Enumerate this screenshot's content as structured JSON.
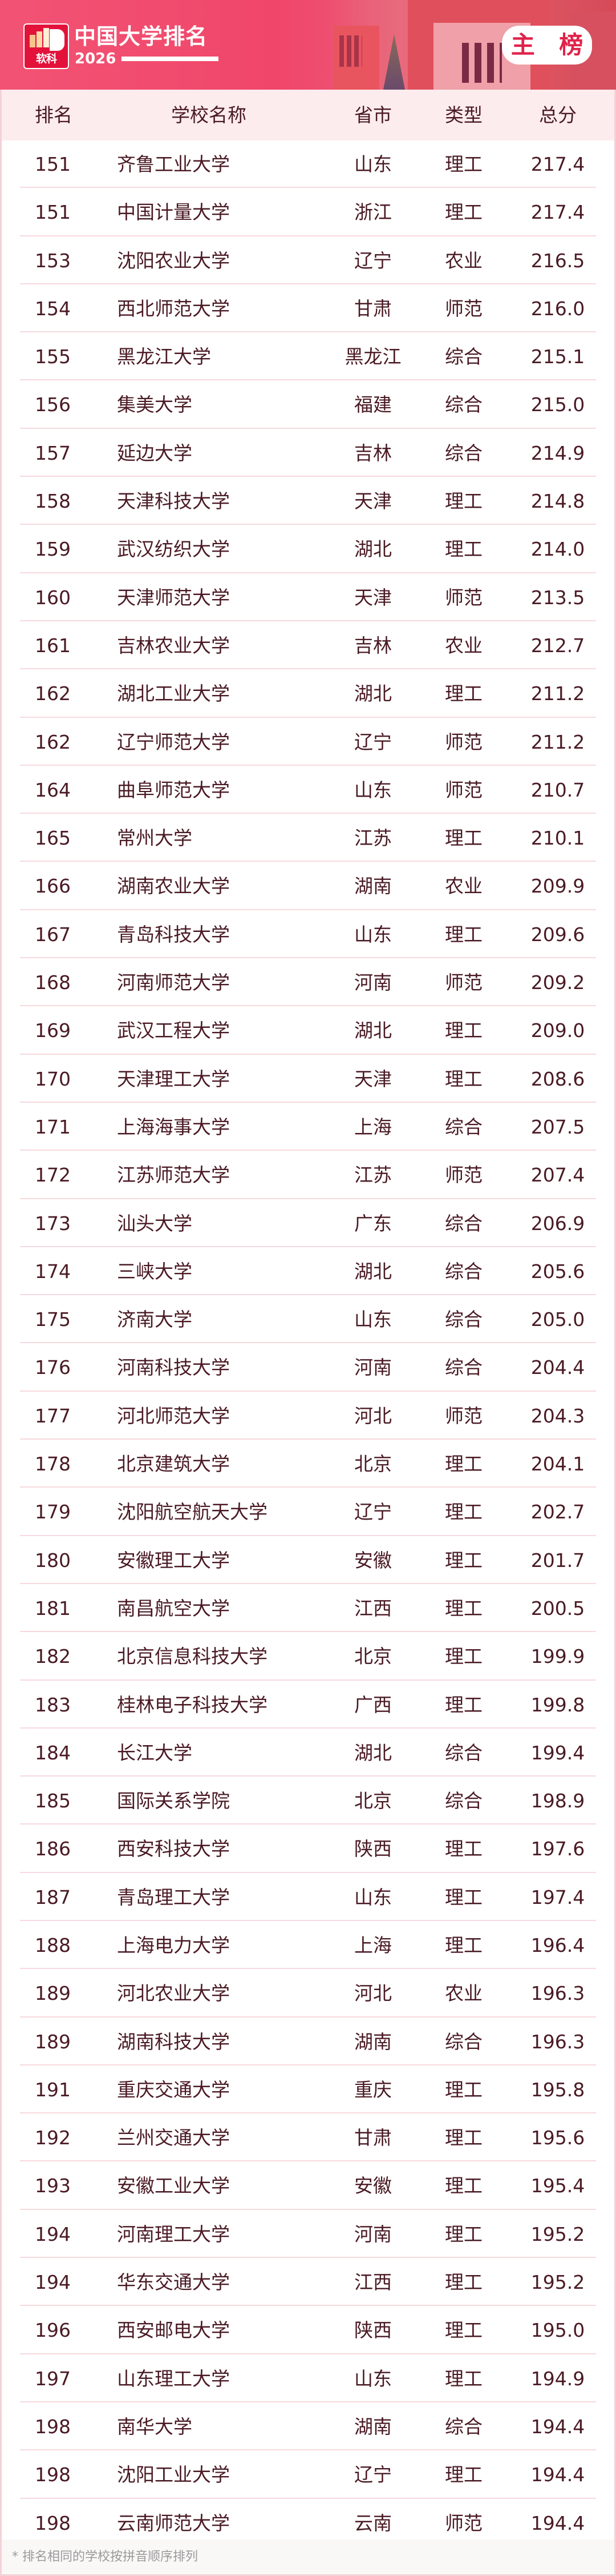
{
  "header": {
    "logo_text": "软科",
    "title": "中国大学排名",
    "year": "2026",
    "badge": "主 榜"
  },
  "colors": {
    "brand": "#e3123b",
    "banner": "#f0466a",
    "text": "#4a1a24",
    "header_bg": "#fdecee"
  },
  "table": {
    "columns": [
      "排名",
      "学校名称",
      "省市",
      "类型",
      "总分"
    ],
    "rows": [
      [
        "151",
        "齐鲁工业大学",
        "山东",
        "理工",
        "217.4"
      ],
      [
        "151",
        "中国计量大学",
        "浙江",
        "理工",
        "217.4"
      ],
      [
        "153",
        "沈阳农业大学",
        "辽宁",
        "农业",
        "216.5"
      ],
      [
        "154",
        "西北师范大学",
        "甘肃",
        "师范",
        "216.0"
      ],
      [
        "155",
        "黑龙江大学",
        "黑龙江",
        "综合",
        "215.1"
      ],
      [
        "156",
        "集美大学",
        "福建",
        "综合",
        "215.0"
      ],
      [
        "157",
        "延边大学",
        "吉林",
        "综合",
        "214.9"
      ],
      [
        "158",
        "天津科技大学",
        "天津",
        "理工",
        "214.8"
      ],
      [
        "159",
        "武汉纺织大学",
        "湖北",
        "理工",
        "214.0"
      ],
      [
        "160",
        "天津师范大学",
        "天津",
        "师范",
        "213.5"
      ],
      [
        "161",
        "吉林农业大学",
        "吉林",
        "农业",
        "212.7"
      ],
      [
        "162",
        "湖北工业大学",
        "湖北",
        "理工",
        "211.2"
      ],
      [
        "162",
        "辽宁师范大学",
        "辽宁",
        "师范",
        "211.2"
      ],
      [
        "164",
        "曲阜师范大学",
        "山东",
        "师范",
        "210.7"
      ],
      [
        "165",
        "常州大学",
        "江苏",
        "理工",
        "210.1"
      ],
      [
        "166",
        "湖南农业大学",
        "湖南",
        "农业",
        "209.9"
      ],
      [
        "167",
        "青岛科技大学",
        "山东",
        "理工",
        "209.6"
      ],
      [
        "168",
        "河南师范大学",
        "河南",
        "师范",
        "209.2"
      ],
      [
        "169",
        "武汉工程大学",
        "湖北",
        "理工",
        "209.0"
      ],
      [
        "170",
        "天津理工大学",
        "天津",
        "理工",
        "208.6"
      ],
      [
        "171",
        "上海海事大学",
        "上海",
        "综合",
        "207.5"
      ],
      [
        "172",
        "江苏师范大学",
        "江苏",
        "师范",
        "207.4"
      ],
      [
        "173",
        "汕头大学",
        "广东",
        "综合",
        "206.9"
      ],
      [
        "174",
        "三峡大学",
        "湖北",
        "综合",
        "205.6"
      ],
      [
        "175",
        "济南大学",
        "山东",
        "综合",
        "205.0"
      ],
      [
        "176",
        "河南科技大学",
        "河南",
        "综合",
        "204.4"
      ],
      [
        "177",
        "河北师范大学",
        "河北",
        "师范",
        "204.3"
      ],
      [
        "178",
        "北京建筑大学",
        "北京",
        "理工",
        "204.1"
      ],
      [
        "179",
        "沈阳航空航天大学",
        "辽宁",
        "理工",
        "202.7"
      ],
      [
        "180",
        "安徽理工大学",
        "安徽",
        "理工",
        "201.7"
      ],
      [
        "181",
        "南昌航空大学",
        "江西",
        "理工",
        "200.5"
      ],
      [
        "182",
        "北京信息科技大学",
        "北京",
        "理工",
        "199.9"
      ],
      [
        "183",
        "桂林电子科技大学",
        "广西",
        "理工",
        "199.8"
      ],
      [
        "184",
        "长江大学",
        "湖北",
        "综合",
        "199.4"
      ],
      [
        "185",
        "国际关系学院",
        "北京",
        "综合",
        "198.9"
      ],
      [
        "186",
        "西安科技大学",
        "陕西",
        "理工",
        "197.6"
      ],
      [
        "187",
        "青岛理工大学",
        "山东",
        "理工",
        "197.4"
      ],
      [
        "188",
        "上海电力大学",
        "上海",
        "理工",
        "196.4"
      ],
      [
        "189",
        "河北农业大学",
        "河北",
        "农业",
        "196.3"
      ],
      [
        "189",
        "湖南科技大学",
        "湖南",
        "综合",
        "196.3"
      ],
      [
        "191",
        "重庆交通大学",
        "重庆",
        "理工",
        "195.8"
      ],
      [
        "192",
        "兰州交通大学",
        "甘肃",
        "理工",
        "195.6"
      ],
      [
        "193",
        "安徽工业大学",
        "安徽",
        "理工",
        "195.4"
      ],
      [
        "194",
        "河南理工大学",
        "河南",
        "理工",
        "195.2"
      ],
      [
        "194",
        "华东交通大学",
        "江西",
        "理工",
        "195.2"
      ],
      [
        "196",
        "西安邮电大学",
        "陕西",
        "理工",
        "195.0"
      ],
      [
        "197",
        "山东理工大学",
        "山东",
        "理工",
        "194.9"
      ],
      [
        "198",
        "南华大学",
        "湖南",
        "综合",
        "194.4"
      ],
      [
        "198",
        "沈阳工业大学",
        "辽宁",
        "理工",
        "194.4"
      ],
      [
        "198",
        "云南师范大学",
        "云南",
        "师范",
        "194.4"
      ]
    ]
  },
  "footnote": "* 排名相同的学校按拼音顺序排列"
}
